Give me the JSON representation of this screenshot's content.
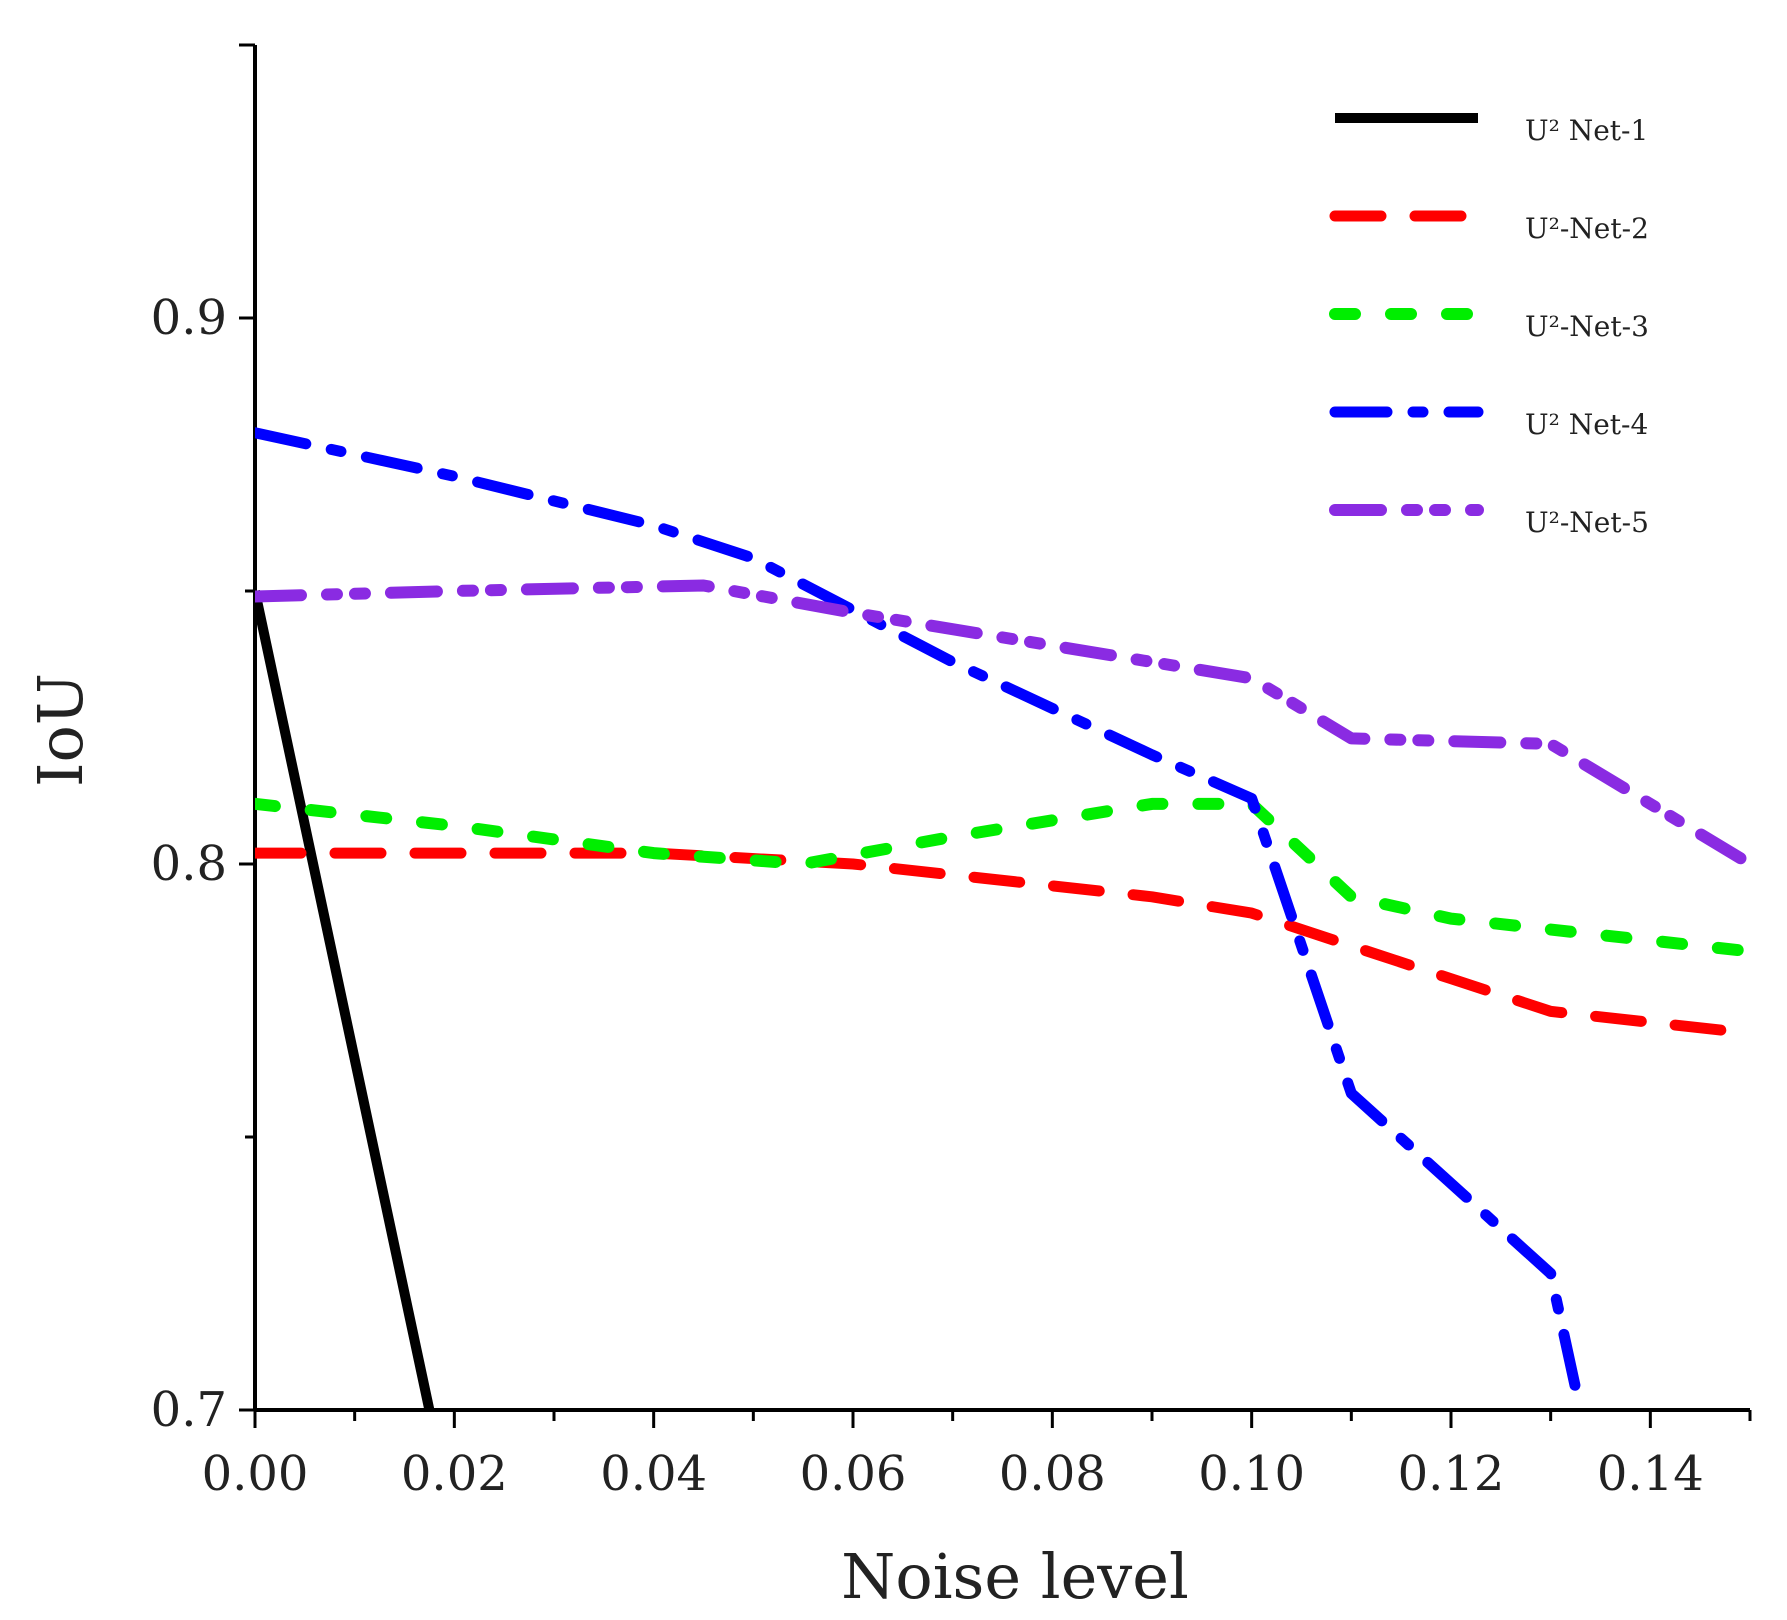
{
  "chart_data": {
    "type": "line",
    "title": "",
    "xlabel": "Noise level",
    "ylabel": "IoU",
    "xlim": [
      0,
      0.15
    ],
    "ylim": [
      0.7,
      0.95
    ],
    "x_ticks": [
      0.0,
      0.02,
      0.04,
      0.06,
      0.08,
      0.1,
      0.12,
      0.14
    ],
    "x_tick_labels": [
      "0.00",
      "0.02",
      "0.04",
      "0.06",
      "0.08",
      "0.10",
      "0.12",
      "0.14"
    ],
    "y_ticks": [
      0.7,
      0.8,
      0.9
    ],
    "y_tick_labels": [
      "0.7",
      "0.8",
      "0.9"
    ],
    "legend_position": "top-right",
    "grid": false,
    "series": [
      {
        "name": "U² Net-1",
        "color": "#000000",
        "style": "solid",
        "x": [
          0.0,
          0.0175
        ],
        "y": [
          0.85,
          0.7
        ]
      },
      {
        "name": "U²-Net-2",
        "color": "#ff0000",
        "style": "dashed",
        "x": [
          0.0,
          0.04,
          0.06,
          0.07,
          0.09,
          0.1,
          0.11,
          0.12,
          0.13,
          0.15
        ],
        "y": [
          0.802,
          0.802,
          0.8,
          0.798,
          0.794,
          0.791,
          0.785,
          0.779,
          0.773,
          0.769
        ]
      },
      {
        "name": "U²-Net-3",
        "color": "#00ee00",
        "style": "dotted",
        "x": [
          0.0,
          0.02,
          0.04,
          0.055,
          0.07,
          0.09,
          0.1,
          0.11,
          0.12,
          0.15
        ],
        "y": [
          0.811,
          0.807,
          0.802,
          0.8,
          0.805,
          0.811,
          0.811,
          0.794,
          0.79,
          0.784
        ]
      },
      {
        "name": "U² Net-4",
        "color": "#0000ff",
        "style": "dash-dot",
        "x": [
          0.0,
          0.02,
          0.04,
          0.05,
          0.07,
          0.09,
          0.1,
          0.11,
          0.13,
          0.1325
        ],
        "y": [
          0.879,
          0.871,
          0.862,
          0.856,
          0.837,
          0.82,
          0.812,
          0.758,
          0.725,
          0.704
        ]
      },
      {
        "name": "U²-Net-5",
        "color": "#8a2be2",
        "style": "dash-dot-dot",
        "x": [
          0.0,
          0.02,
          0.045,
          0.06,
          0.08,
          0.1,
          0.11,
          0.13,
          0.15
        ],
        "y": [
          0.849,
          0.85,
          0.851,
          0.846,
          0.84,
          0.834,
          0.823,
          0.822,
          0.8
        ]
      }
    ]
  }
}
